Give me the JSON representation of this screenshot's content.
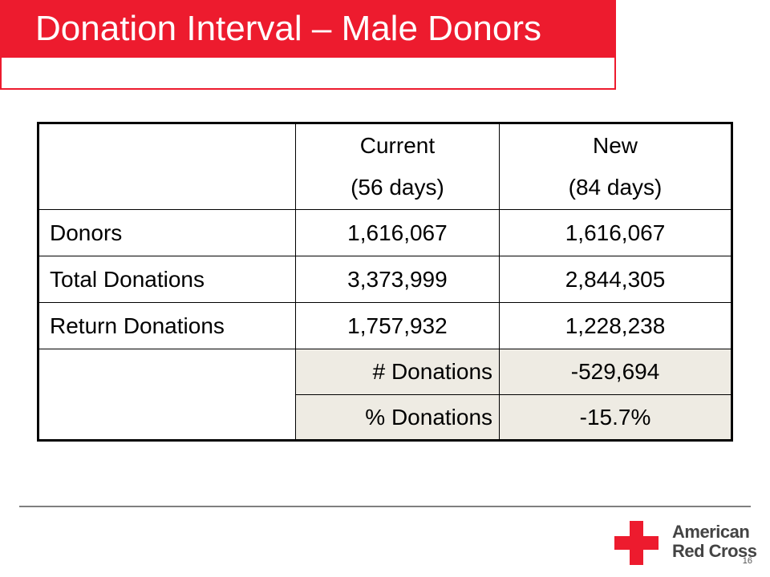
{
  "slide": {
    "title": "Donation Interval – Male Donors",
    "page_number": "16"
  },
  "table": {
    "header": {
      "current_line1": "Current",
      "current_line2": "(56 days)",
      "new_line1": "New",
      "new_line2": "(84 days)"
    },
    "rows": [
      {
        "label": "Donors",
        "current": "1,616,067",
        "new": "1,616,067"
      },
      {
        "label": "Total Donations",
        "current": "3,373,999",
        "new": "2,844,305"
      },
      {
        "label": "Return Donations",
        "current": "1,757,932",
        "new": "1,228,238"
      }
    ],
    "diff_rows": [
      {
        "label": "# Donations",
        "value": "-529,694"
      },
      {
        "label": "% Donations",
        "value": "-15.7%"
      }
    ],
    "shade_color": "#eeebe3"
  },
  "logo": {
    "line1": "American",
    "line2": "Red Cross",
    "brand_color": "#ed1b2e"
  }
}
